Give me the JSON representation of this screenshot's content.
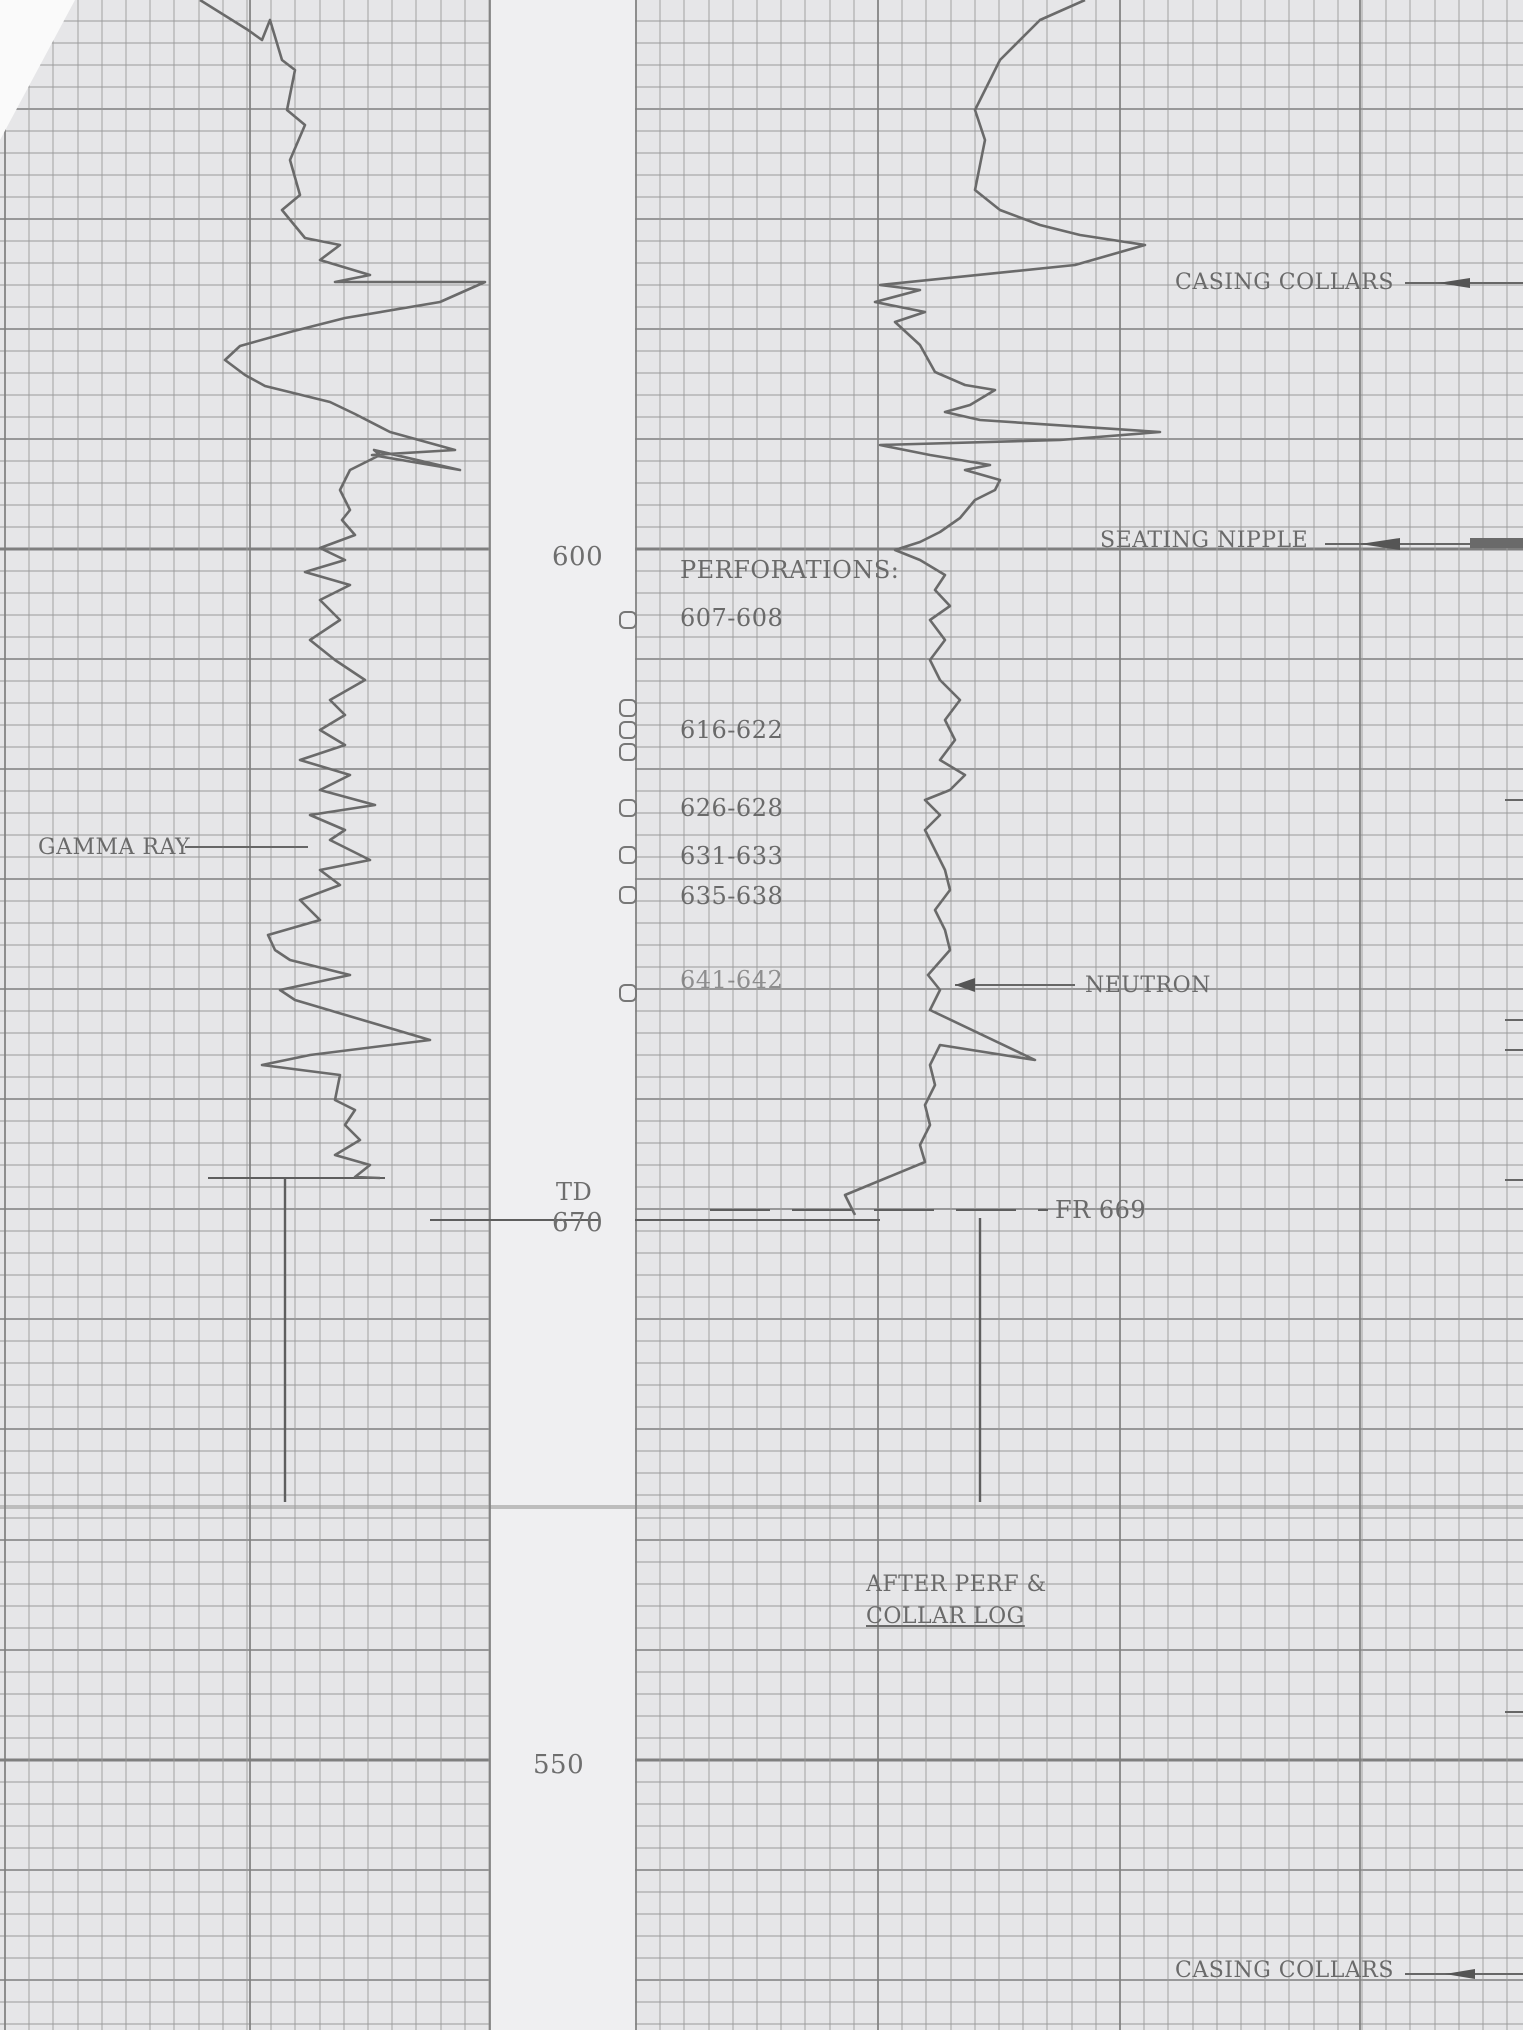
{
  "depth_marks": {
    "d600": "600",
    "td": "TD",
    "d670": "670",
    "d550": "550"
  },
  "annotations": {
    "casing_collars_top": "CASING COLLARS",
    "seating_nipple": "SEATING NIPPLE",
    "gamma_ray": "GAMMA RAY",
    "neutron": "NEUTRON",
    "fr": "FR 669",
    "after_perf_line1": "AFTER PERF &",
    "after_perf_line2": "COLLAR LOG",
    "casing_collars_bottom": "CASING COLLARS"
  },
  "perforations": {
    "heading": "PERFORATIONS:",
    "intervals": [
      "607-608",
      "616-622",
      "626-628",
      "631-633",
      "635-638",
      "641-642"
    ]
  },
  "colors": {
    "paper": "#e6e6e8",
    "depth_track": "#efeff1",
    "grid": "#8a8a8a",
    "trace": "#6c6c6c"
  }
}
